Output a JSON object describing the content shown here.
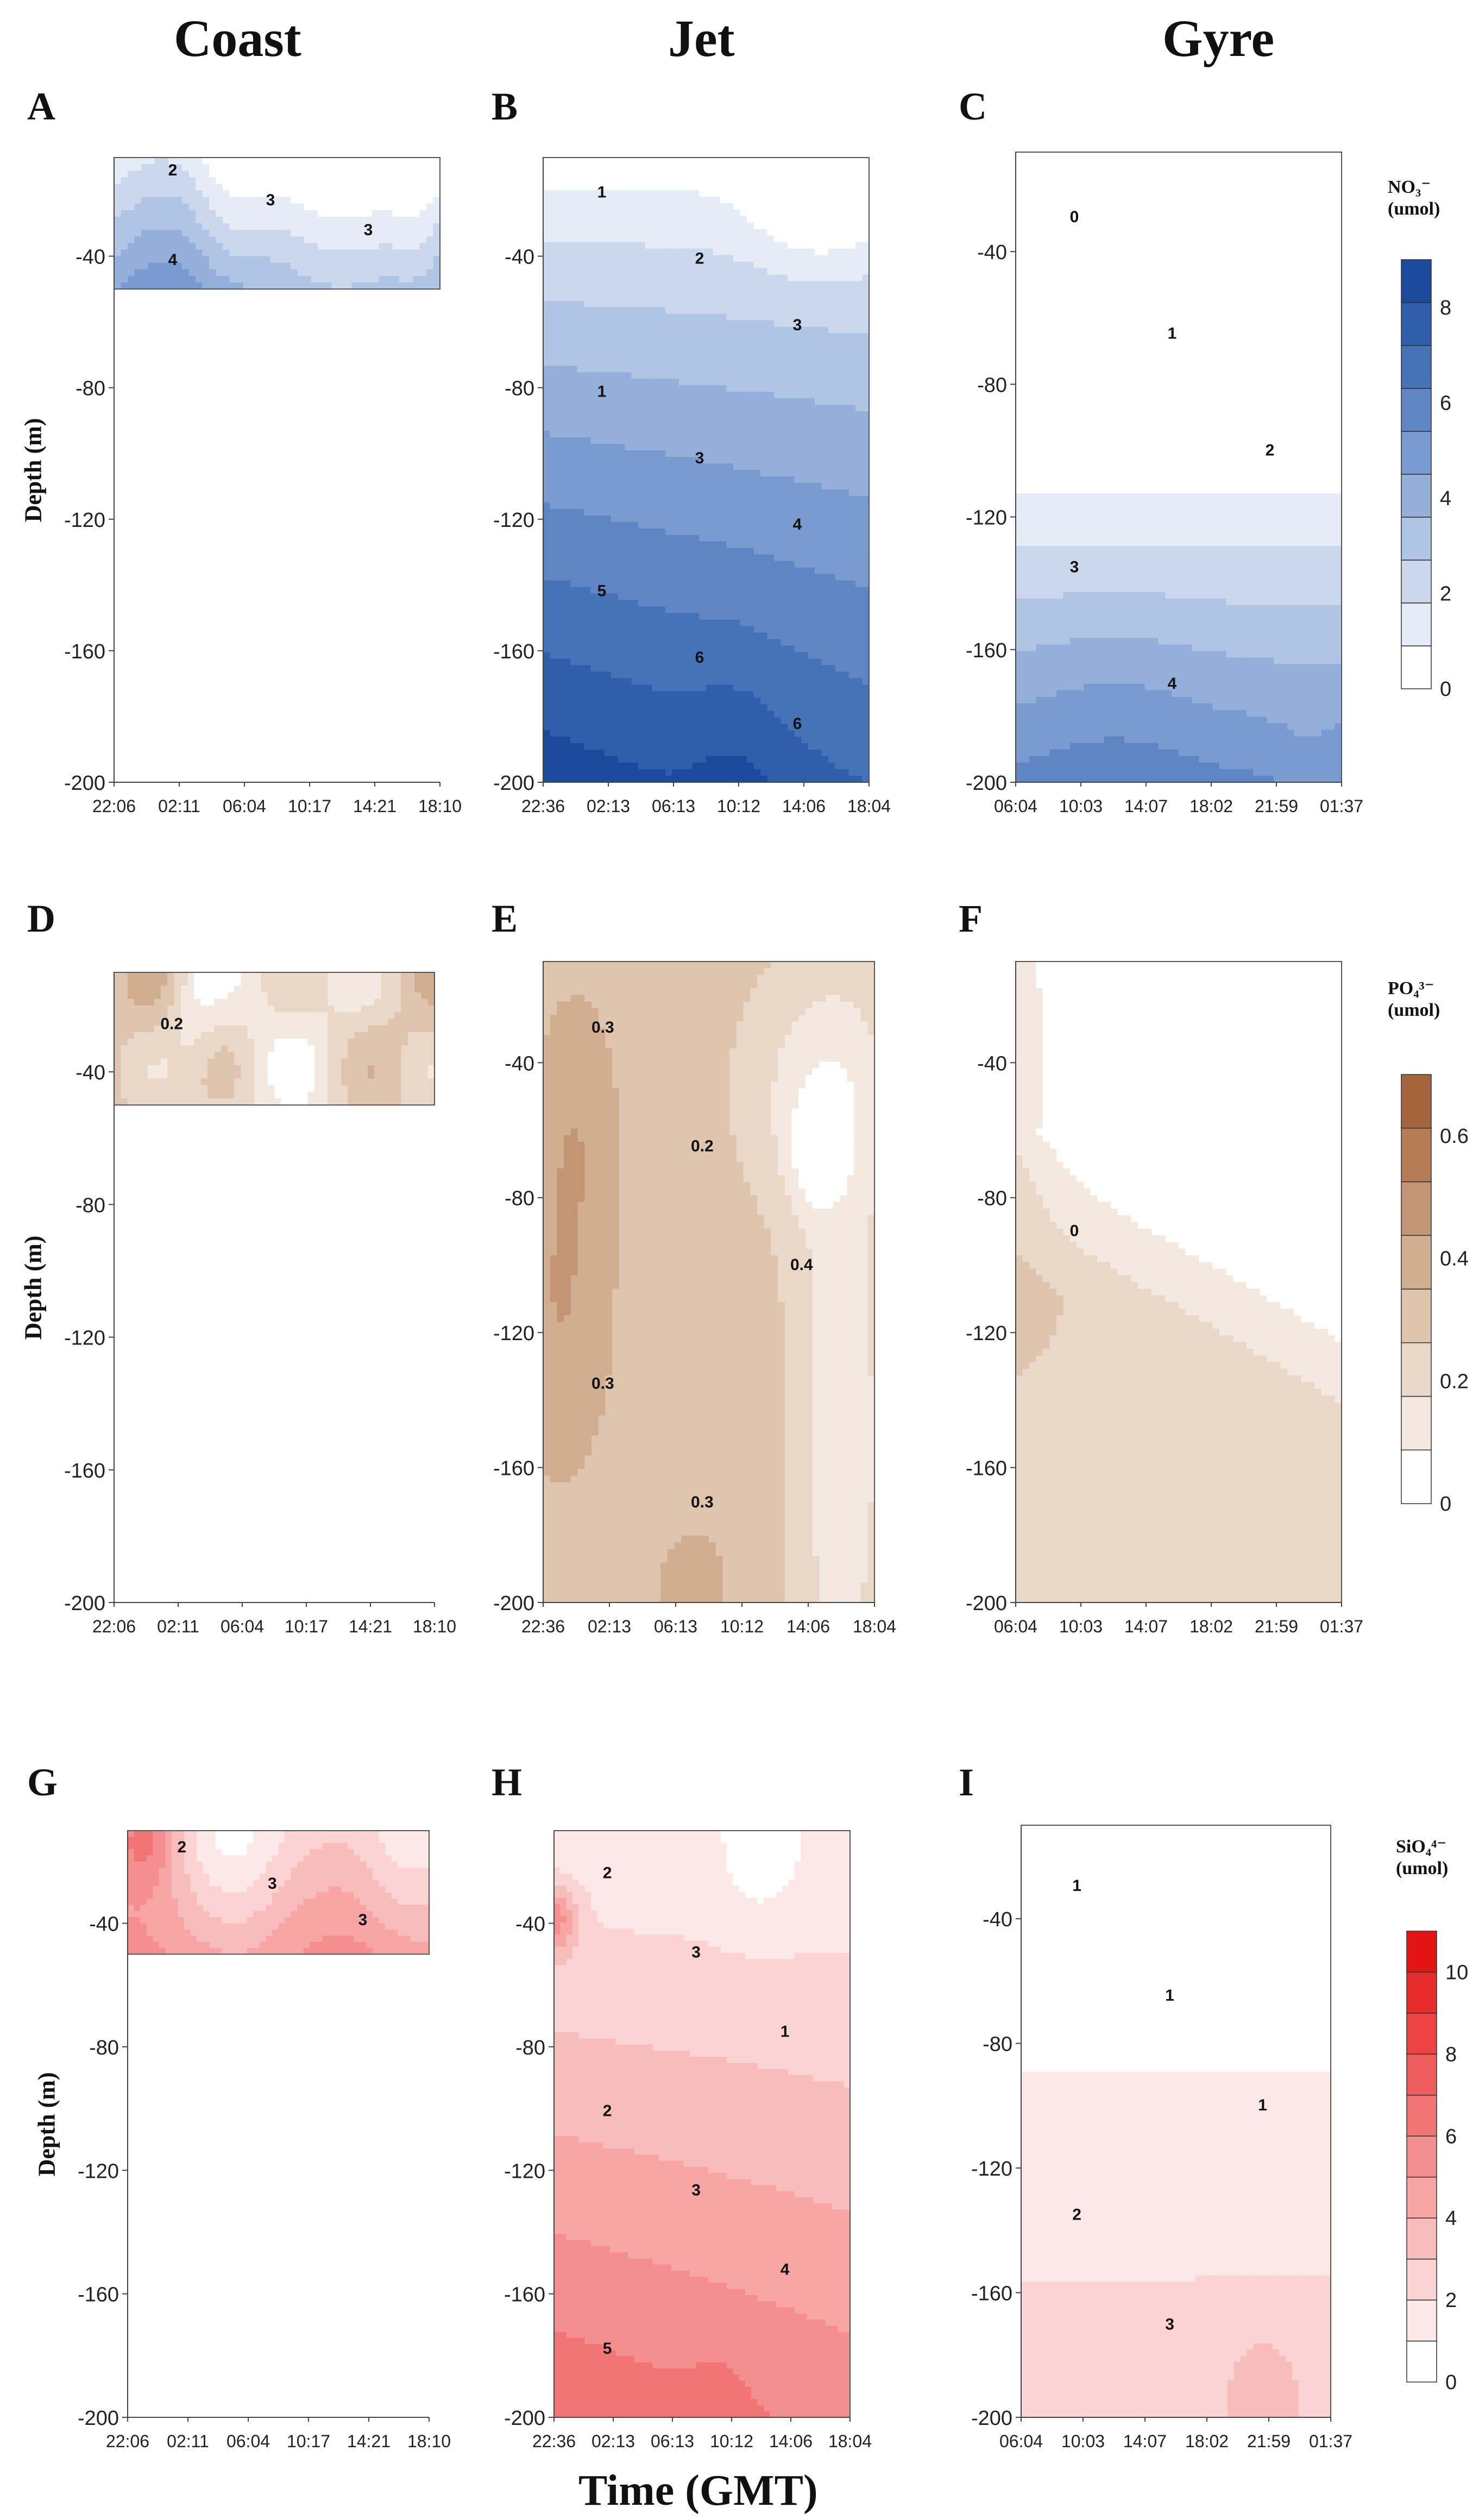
{
  "figure": {
    "column_headers": [
      "Coast",
      "Jet",
      "Gyre"
    ],
    "x_axis_title": "Time (GMT)",
    "depth_axis_label": "Depth (m)"
  },
  "colors": {
    "nitrate": [
      "#ffffff",
      "#e6ecf6",
      "#cbd7ec",
      "#b0c4e3",
      "#94afd9",
      "#7a9bcf",
      "#5f85c4",
      "#4672b8",
      "#2f5eab",
      "#1b4a9c"
    ],
    "phosphate": [
      "#ffffff",
      "#f3e9e1",
      "#e9d8c8",
      "#dfc4ae",
      "#d2ae91",
      "#c49574",
      "#b57d56",
      "#a5653c"
    ],
    "silicate": [
      "#ffffff",
      "#fde8e8",
      "#fbd3d3",
      "#f9bcbc",
      "#f7a5a5",
      "#f58e8e",
      "#f27575",
      "#ef5d5d",
      "#ec4444",
      "#e82b2b",
      "#e41414"
    ]
  },
  "colorbars": {
    "nitrate": {
      "title": [
        "NO₃⁻",
        "(umol)"
      ],
      "ticks": [
        "8",
        "6",
        "4",
        "2",
        "0"
      ],
      "max": 9
    },
    "phosphate": {
      "title": [
        "PO₄³⁻",
        "(umol)"
      ],
      "ticks": [
        "0.6",
        "0.4",
        "0.2",
        "0"
      ],
      "max": 0.7
    },
    "silicate": {
      "title": [
        "SiO₄⁴⁻",
        "(umol)"
      ],
      "ticks": [
        "10",
        "8",
        "6",
        "4",
        "2",
        "0"
      ],
      "max": 11
    }
  },
  "chart_data": [
    {
      "type": "heatmap",
      "panel": "A",
      "column": "Coast",
      "variable": "nitrate",
      "unit": "umol",
      "xlabel": "",
      "ylabel": "Depth (m)",
      "x": [
        "22:06",
        "02:11",
        "06:04",
        "10:17",
        "14:21",
        "18:10"
      ],
      "y_ticks": [
        -40,
        -80,
        -120,
        -160,
        -200
      ],
      "ylim": [
        -200,
        -10
      ],
      "data_depth": [
        -10,
        -50
      ],
      "contour_labels": [
        "2",
        "3",
        "3",
        "4"
      ],
      "max_value": 5
    },
    {
      "type": "heatmap",
      "panel": "B",
      "column": "Jet",
      "variable": "nitrate",
      "unit": "umol",
      "xlabel": "",
      "ylabel": "",
      "x": [
        "22:36",
        "02:13",
        "06:13",
        "10:12",
        "14:06",
        "18:04"
      ],
      "y_ticks": [
        -40,
        -80,
        -120,
        -160,
        -200
      ],
      "ylim": [
        -200,
        -10
      ],
      "data_depth": [
        -10,
        -200
      ],
      "contour_labels": [
        "1",
        "2",
        "3",
        "1",
        "3",
        "4",
        "5",
        "6",
        "6"
      ],
      "max_value": 7
    },
    {
      "type": "heatmap",
      "panel": "C",
      "column": "Gyre",
      "variable": "nitrate",
      "unit": "umol",
      "xlabel": "",
      "ylabel": "",
      "x": [
        "06:04",
        "10:03",
        "14:07",
        "18:02",
        "21:59",
        "01:37"
      ],
      "y_ticks": [
        -40,
        -80,
        -120,
        -160,
        -200
      ],
      "ylim": [
        -200,
        -10
      ],
      "data_depth": [
        -10,
        -200
      ],
      "contour_labels": [
        "0",
        "1",
        "2",
        "3",
        "4"
      ],
      "max_value": 5
    },
    {
      "type": "heatmap",
      "panel": "D",
      "column": "Coast",
      "variable": "phosphate",
      "unit": "umol",
      "xlabel": "",
      "ylabel": "Depth (m)",
      "x": [
        "22:06",
        "02:11",
        "06:04",
        "10:17",
        "14:21",
        "18:10"
      ],
      "y_ticks": [
        -40,
        -80,
        -120,
        -160,
        -200
      ],
      "ylim": [
        -200,
        -10
      ],
      "data_depth": [
        -10,
        -50
      ],
      "contour_labels": [
        "0.2"
      ],
      "max_value": 0.4
    },
    {
      "type": "heatmap",
      "panel": "E",
      "column": "Jet",
      "variable": "phosphate",
      "unit": "umol",
      "xlabel": "",
      "ylabel": "",
      "x": [
        "22:36",
        "02:13",
        "06:13",
        "10:12",
        "14:06",
        "18:04"
      ],
      "y_ticks": [
        -40,
        -80,
        -120,
        -160,
        -200
      ],
      "ylim": [
        -200,
        -10
      ],
      "data_depth": [
        -10,
        -200
      ],
      "contour_labels": [
        "0.3",
        "0.2",
        "0.4",
        "0.3",
        "0.3"
      ],
      "max_value": 0.5
    },
    {
      "type": "heatmap",
      "panel": "F",
      "column": "Gyre",
      "variable": "phosphate",
      "unit": "umol",
      "xlabel": "",
      "ylabel": "",
      "x": [
        "06:04",
        "10:03",
        "14:07",
        "18:02",
        "21:59",
        "01:37"
      ],
      "y_ticks": [
        -40,
        -80,
        -120,
        -160,
        -200
      ],
      "ylim": [
        -200,
        -10
      ],
      "data_depth": [
        -10,
        -200
      ],
      "contour_labels": [
        "0"
      ],
      "max_value": 0.3
    },
    {
      "type": "heatmap",
      "panel": "G",
      "column": "Coast",
      "variable": "silicate",
      "unit": "umol",
      "xlabel": "",
      "ylabel": "Depth (m)",
      "x": [
        "22:06",
        "02:11",
        "06:04",
        "10:17",
        "14:21",
        "18:10"
      ],
      "y_ticks": [
        -40,
        -80,
        -120,
        -160,
        -200
      ],
      "ylim": [
        -200,
        -10
      ],
      "data_depth": [
        -10,
        -50
      ],
      "contour_labels": [
        "2",
        "3",
        "3"
      ],
      "max_value": 7
    },
    {
      "type": "heatmap",
      "panel": "H",
      "column": "Jet",
      "variable": "silicate",
      "unit": "umol",
      "xlabel": "Time (GMT)",
      "ylabel": "",
      "x": [
        "22:36",
        "02:13",
        "06:13",
        "10:12",
        "14:06",
        "18:04"
      ],
      "y_ticks": [
        -40,
        -80,
        -120,
        -160,
        -200
      ],
      "ylim": [
        -200,
        -10
      ],
      "data_depth": [
        -10,
        -200
      ],
      "contour_labels": [
        "2",
        "3",
        "1",
        "2",
        "3",
        "4",
        "5"
      ],
      "max_value": 7
    },
    {
      "type": "heatmap",
      "panel": "I",
      "column": "Gyre",
      "variable": "silicate",
      "unit": "umol",
      "xlabel": "",
      "ylabel": "",
      "x": [
        "06:04",
        "10:03",
        "14:07",
        "18:02",
        "21:59",
        "01:37"
      ],
      "y_ticks": [
        -40,
        -80,
        -120,
        -160,
        -200
      ],
      "ylim": [
        -200,
        -10
      ],
      "data_depth": [
        -10,
        -200
      ],
      "contour_labels": [
        "1",
        "1",
        "1",
        "2",
        "3"
      ],
      "max_value": 4
    }
  ]
}
